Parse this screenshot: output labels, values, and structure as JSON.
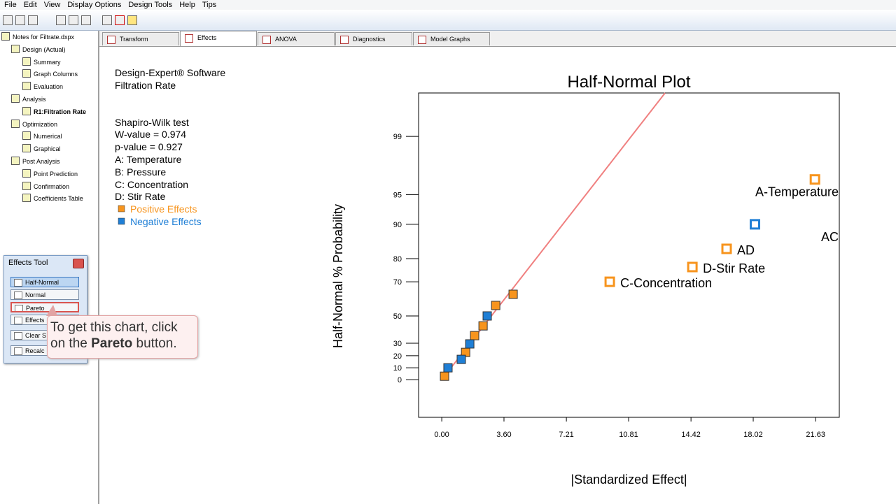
{
  "menu": [
    "File",
    "Edit",
    "View",
    "Display Options",
    "Design Tools",
    "Help",
    "Tips"
  ],
  "tree": {
    "root": "Notes for Filtrate.dxpx",
    "groups": [
      {
        "label": "Design (Actual)",
        "items": [
          "Summary",
          "Graph Columns",
          "Evaluation"
        ]
      },
      {
        "label": "Analysis",
        "items": [
          "R1:Filtration Rate"
        ]
      },
      {
        "label": "Optimization",
        "items": [
          "Numerical",
          "Graphical"
        ]
      },
      {
        "label": "Post Analysis",
        "items": [
          "Point Prediction",
          "Confirmation",
          "Coefficients Table"
        ]
      }
    ]
  },
  "tabs": [
    "Transform",
    "Effects",
    "ANOVA",
    "Diagnostics",
    "Model Graphs"
  ],
  "active_tab": 1,
  "info": {
    "header": [
      "Design-Expert® Software",
      "Filtration Rate"
    ],
    "lines": [
      "Shapiro-Wilk test",
      "W-value = 0.974",
      "p-value = 0.927",
      "A: Temperature",
      "B: Pressure",
      "C: Concentration",
      "D: Stir Rate"
    ]
  },
  "effects_tool": {
    "title": "Effects Tool",
    "buttons": [
      "Half-Normal",
      "Normal",
      "Pareto",
      "Effects",
      "Clear S",
      "Recalc"
    ]
  },
  "callout": {
    "line1": "To get this chart, click",
    "line2": [
      "on the ",
      "Pareto",
      " button."
    ]
  },
  "chart_data": {
    "type": "scatter",
    "title": "Half-Normal Plot",
    "x_label": "|Standardized Effect|",
    "y_label": "Half-Normal % Probability",
    "yscale": "half-normal probability",
    "xlim": [
      -1.34,
      23.0
    ],
    "xticks": [
      {
        "value": 0,
        "label": "0.00"
      },
      {
        "value": 3.6,
        "label": "3.60"
      },
      7.21,
      10.81,
      14.42,
      18.02,
      21.63
    ],
    "ylim": [
      -31,
      99.76
    ],
    "yticks": [
      0,
      10,
      20,
      30,
      50,
      70,
      80,
      90,
      95,
      99
    ],
    "series": [
      {
        "name": "Positive Effects",
        "color": "#f7941d",
        "x": [
          0.16,
          1.38,
          1.9,
          2.39,
          3.12,
          4.13,
          9.72,
          14.5,
          16.48,
          21.59
        ],
        "values": [
          2.9,
          22.7,
          35.9,
          43.1,
          56.8,
          63.4,
          70.0,
          76.7,
          83.4,
          96.6
        ],
        "point_labels": [
          null,
          null,
          null,
          null,
          null,
          null,
          "C-Concentration",
          "D-Stir Rate",
          "AD",
          "A-Temperature"
        ]
      },
      {
        "name": "Negative Effects",
        "color": "#1f7fd6",
        "x": [
          0.36,
          1.13,
          1.62,
          2.63,
          18.12
        ],
        "values": [
          10.0,
          17.0,
          29.5,
          50.0,
          90.0
        ],
        "point_labels": [
          null,
          null,
          null,
          null,
          "AC"
        ]
      }
    ],
    "fit_line": {
      "color": "#f08080",
      "x": [
        0,
        12.92
      ],
      "values": [
        0,
        99.76
      ]
    }
  }
}
